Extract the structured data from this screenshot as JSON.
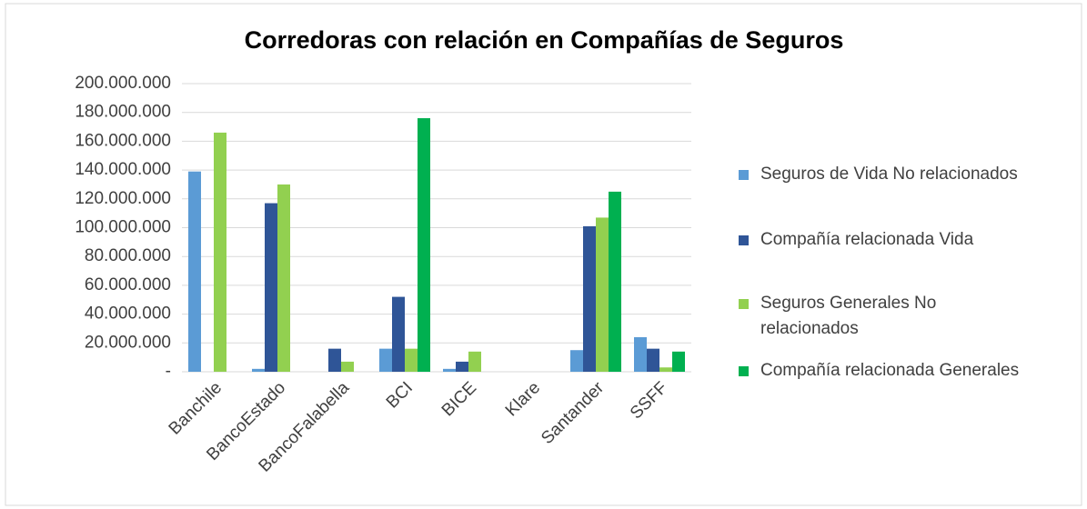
{
  "chart_data": {
    "type": "bar",
    "title": "Corredoras con relación en Compañías de Seguros",
    "categories": [
      "Banchile",
      "BancoEstado",
      "BancoFalabella",
      "BCI",
      "BICE",
      "Klare",
      "Santander",
      "SSFF"
    ],
    "series": [
      {
        "name": "Seguros de Vida No relacionados",
        "color": "#5b9bd5",
        "values": [
          139000000,
          2000000,
          0,
          16000000,
          2000000,
          0,
          15000000,
          24000000
        ]
      },
      {
        "name": "Compañía relacionada Vida",
        "color": "#2f5597",
        "values": [
          0,
          117000000,
          16000000,
          52000000,
          7000000,
          0,
          101000000,
          16000000
        ]
      },
      {
        "name": "Seguros Generales No relacionados",
        "color": "#92d050",
        "values": [
          166000000,
          130000000,
          7000000,
          16000000,
          14000000,
          0,
          107000000,
          3000000
        ]
      },
      {
        "name": "Compañía relacionada Generales",
        "color": "#00b050",
        "values": [
          0,
          0,
          0,
          176000000,
          0,
          0,
          125000000,
          14000000
        ]
      }
    ],
    "ylim": [
      0,
      200000000
    ],
    "yticks": [
      {
        "value": 0,
        "label": "-"
      },
      {
        "value": 20000000,
        "label": "20.000.000"
      },
      {
        "value": 40000000,
        "label": "40.000.000"
      },
      {
        "value": 60000000,
        "label": "60.000.000"
      },
      {
        "value": 80000000,
        "label": "80.000.000"
      },
      {
        "value": 100000000,
        "label": "100.000.000"
      },
      {
        "value": 120000000,
        "label": "120.000.000"
      },
      {
        "value": 140000000,
        "label": "140.000.000"
      },
      {
        "value": 160000000,
        "label": "160.000.000"
      },
      {
        "value": 180000000,
        "label": "180.000.000"
      },
      {
        "value": 200000000,
        "label": "200.000.000"
      }
    ],
    "grid": true,
    "legend": "right"
  }
}
